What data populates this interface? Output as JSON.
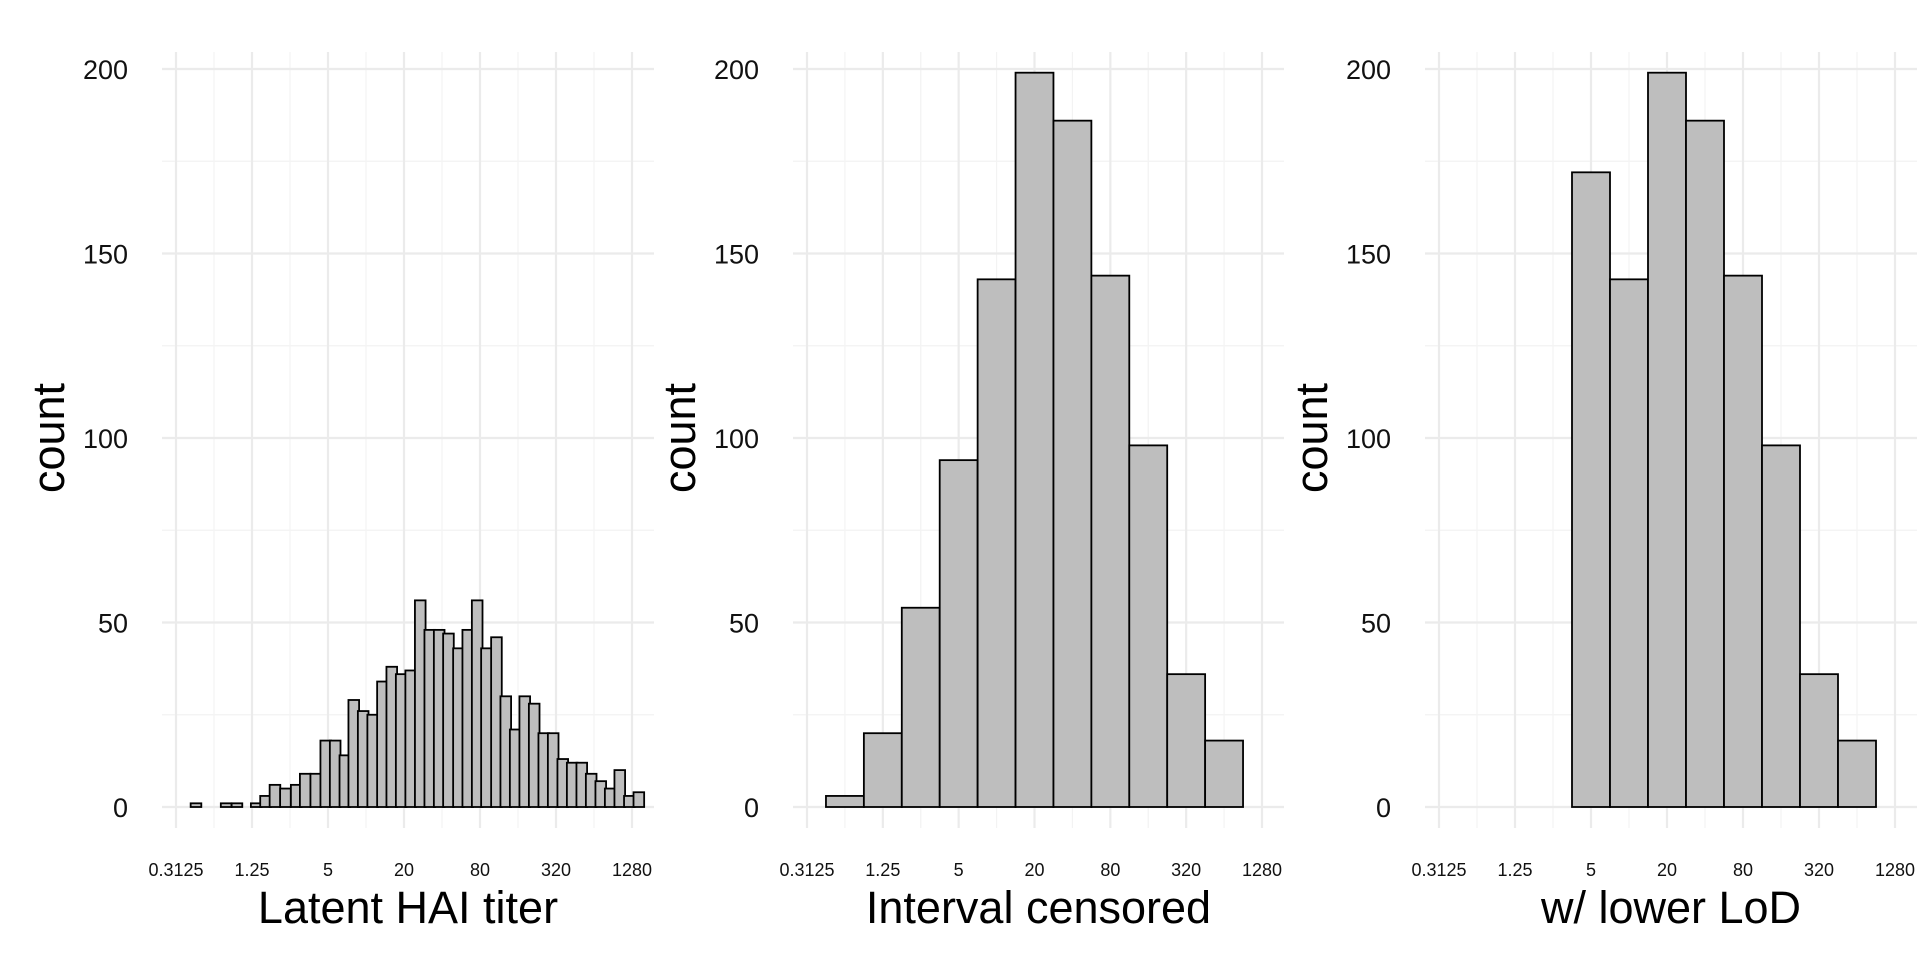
{
  "figure": {
    "panel_1": {
      "xlabel": "Latent HAI titer",
      "ylabel": "count"
    },
    "panel_2": {
      "xlabel": "Interval censored",
      "ylabel": "count"
    },
    "panel_3": {
      "xlabel": "w/ lower LoD",
      "ylabel": "count"
    }
  },
  "chart_data": [
    {
      "type": "bar",
      "title": "",
      "xlabel": "Latent HAI titer",
      "ylabel": "count",
      "x_scale": "log2",
      "x_ticks": [
        "0.3125",
        "1.25",
        "5",
        "20",
        "80",
        "320",
        "1280"
      ],
      "y_ticks": [
        "0",
        "50",
        "100",
        "150",
        "200"
      ],
      "ylim": [
        0,
        200
      ],
      "grid": true,
      "bar_color": "#bebebe",
      "x": [
        0.32,
        0.45,
        0.62,
        0.78,
        0.95,
        1.1,
        1.35,
        1.6,
        1.9,
        2.3,
        2.8,
        3.3,
        4.0,
        4.8,
        5.7,
        6.8,
        8.0,
        9.5,
        11.3,
        13.5,
        16.0,
        19.0,
        22.6,
        26.9,
        32.0,
        38.0,
        45.0,
        54.0,
        64.0,
        76.0,
        90.0,
        108.0,
        128.0,
        152.0,
        181.0,
        215.0,
        256.0,
        304.0,
        362.0,
        430.0,
        512.0,
        608.0,
        724.0,
        860.0,
        1024.0,
        1220.0,
        1450.0
      ],
      "values": [
        0,
        1,
        0,
        1,
        1,
        0,
        1,
        3,
        6,
        5,
        6,
        9,
        9,
        18,
        18,
        14,
        29,
        26,
        25,
        34,
        38,
        36,
        37,
        56,
        48,
        48,
        47,
        43,
        48,
        56,
        43,
        46,
        30,
        21,
        30,
        28,
        20,
        20,
        13,
        12,
        12,
        9,
        7,
        5,
        10,
        3,
        4
      ]
    },
    {
      "type": "bar",
      "title": "",
      "xlabel": "Interval censored",
      "ylabel": "count",
      "x_scale": "log2",
      "x_ticks": [
        "0.3125",
        "1.25",
        "5",
        "20",
        "80",
        "320",
        "1280"
      ],
      "y_ticks": [
        "0",
        "50",
        "100",
        "150",
        "200"
      ],
      "ylim": [
        0,
        200
      ],
      "grid": true,
      "bar_color": "#bebebe",
      "x": [
        0.625,
        1.25,
        2.5,
        5,
        10,
        20,
        40,
        80,
        160,
        320,
        640
      ],
      "values": [
        3,
        20,
        54,
        94,
        143,
        199,
        186,
        144,
        98,
        36,
        18
      ]
    },
    {
      "type": "bar",
      "title": "",
      "xlabel": "w/ lower LoD",
      "ylabel": "count",
      "x_scale": "log2",
      "x_ticks": [
        "0.3125",
        "1.25",
        "5",
        "20",
        "80",
        "320",
        "1280"
      ],
      "y_ticks": [
        "0",
        "50",
        "100",
        "150",
        "200"
      ],
      "ylim": [
        0,
        200
      ],
      "grid": true,
      "bar_color": "#bebebe",
      "x": [
        5,
        10,
        20,
        40,
        80,
        160,
        320,
        640
      ],
      "values": [
        172,
        143,
        199,
        186,
        144,
        98,
        36,
        18
      ]
    }
  ]
}
